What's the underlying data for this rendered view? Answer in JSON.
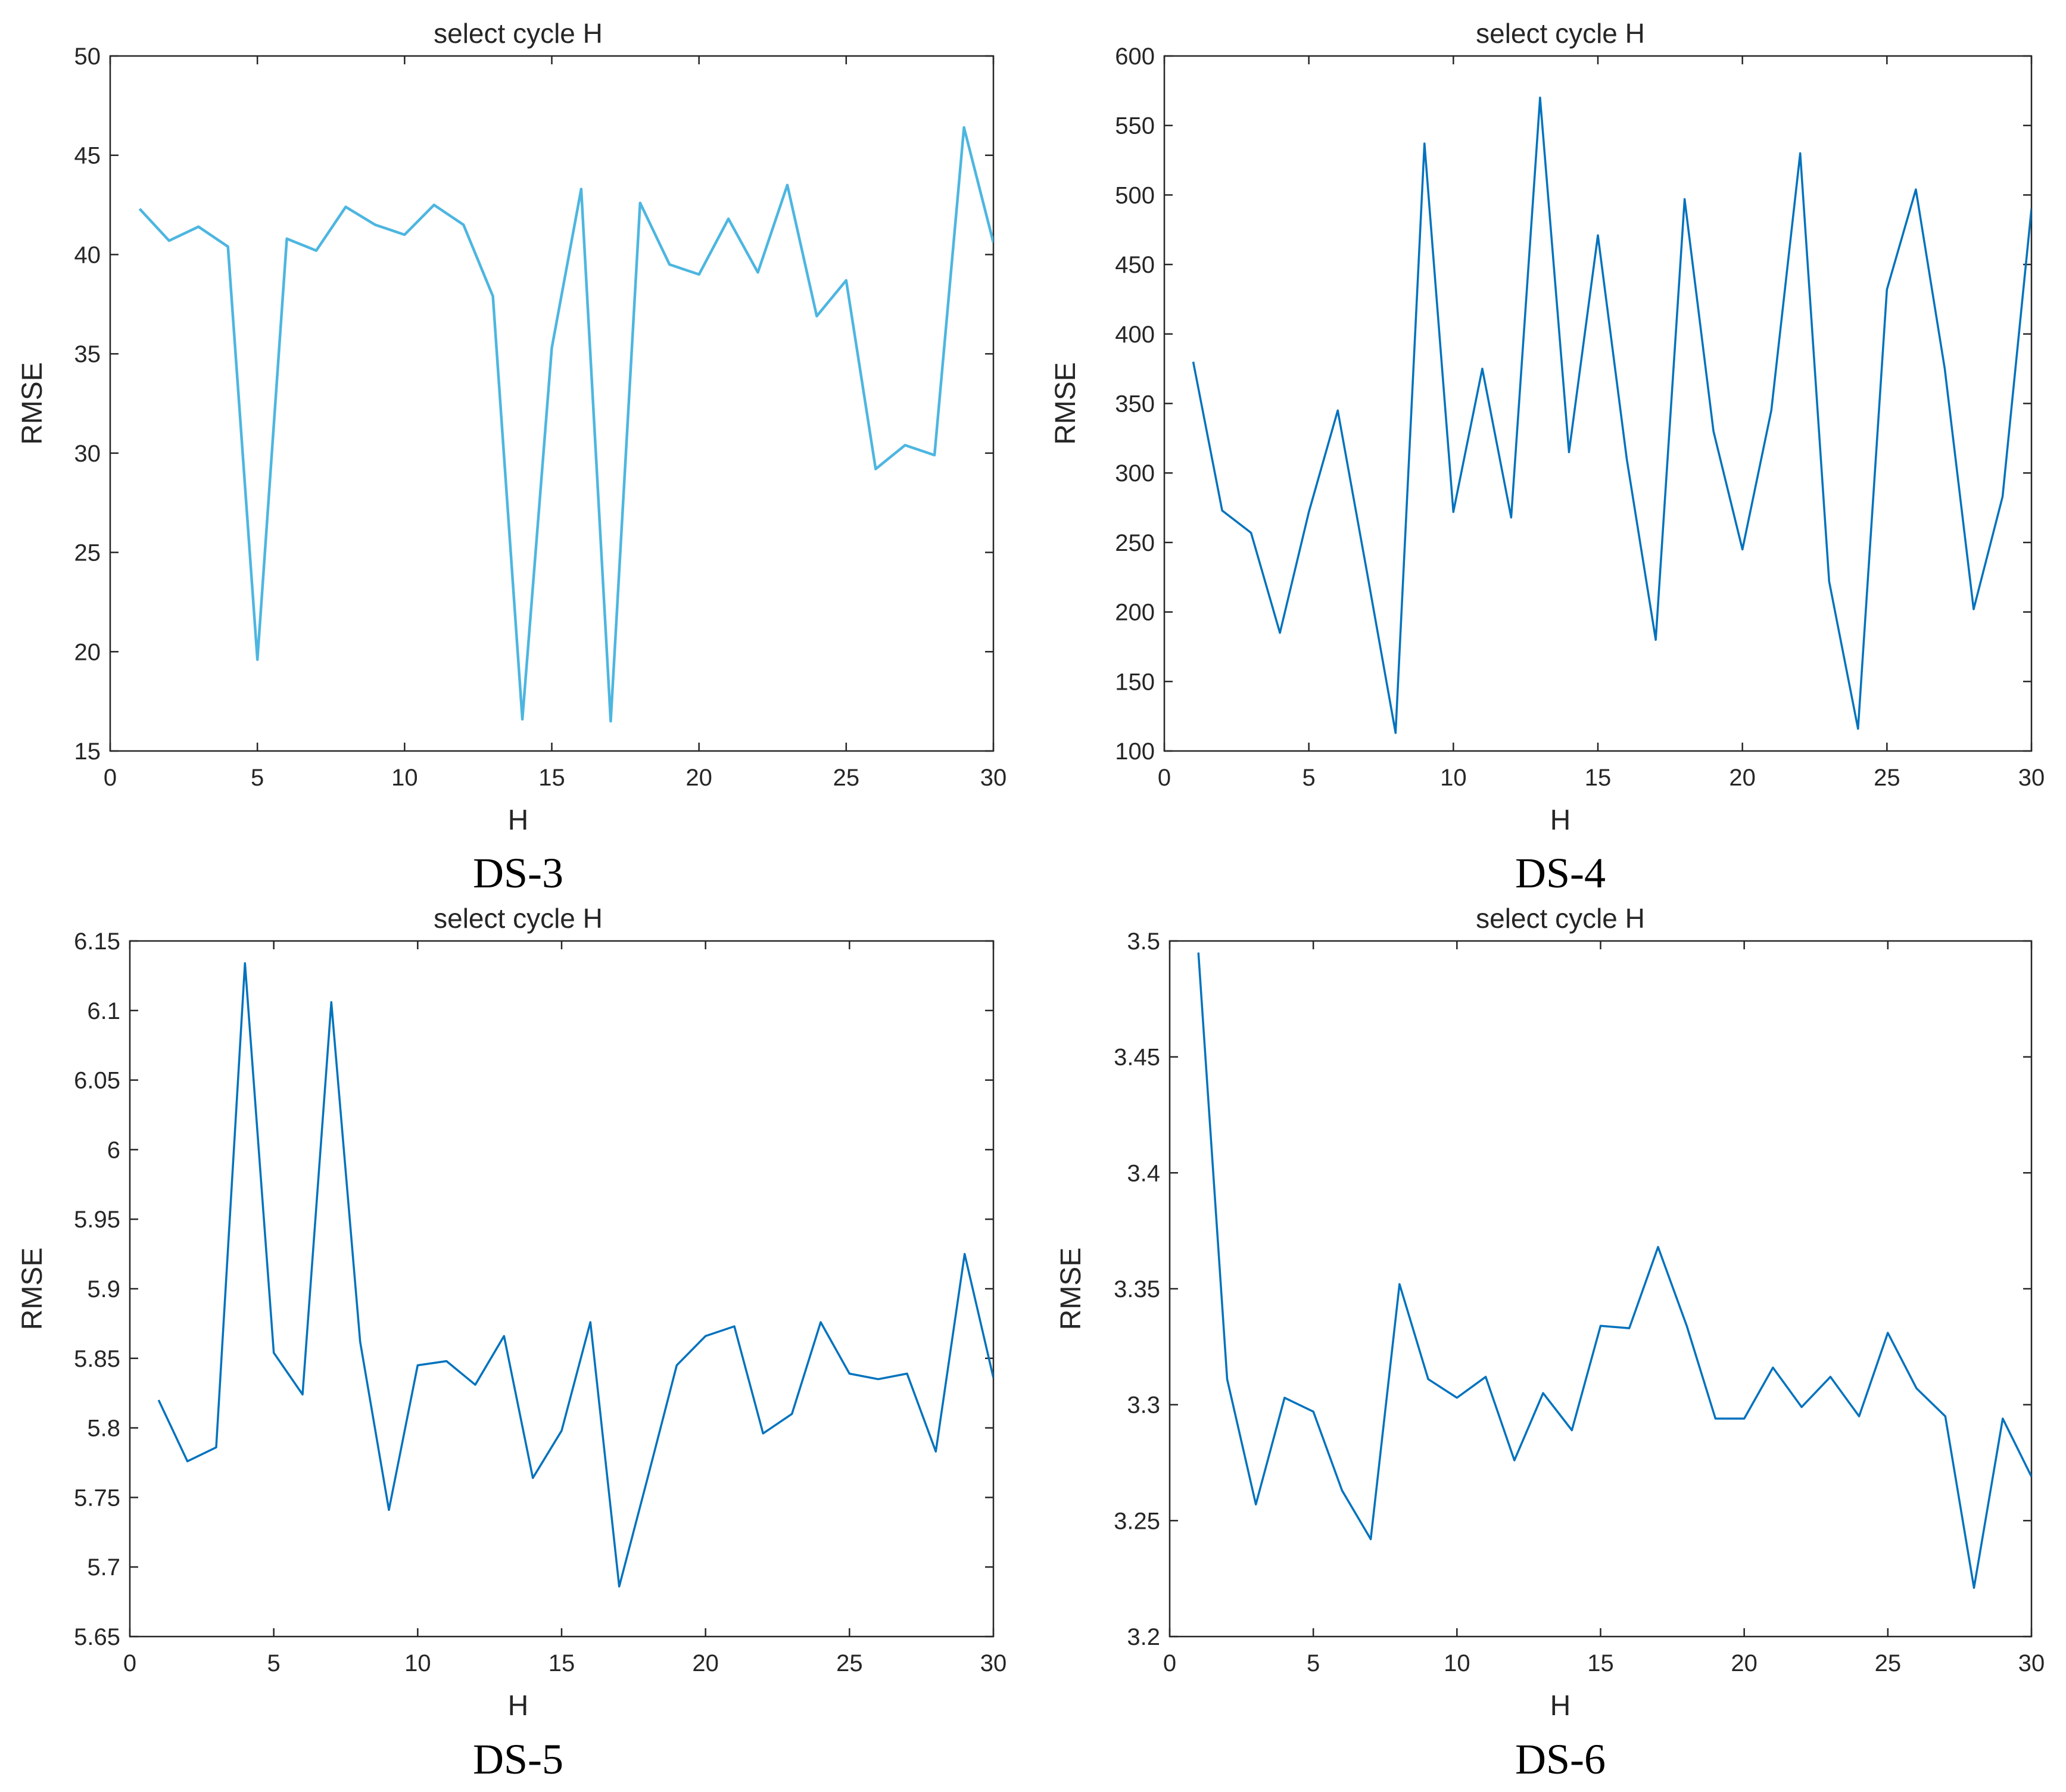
{
  "chart_data": [
    {
      "type": "line",
      "caption": "DS-3",
      "title": "select cycle H",
      "xlabel": "H",
      "ylabel": "RMSE",
      "xlim": [
        0,
        30
      ],
      "ylim": [
        15,
        50
      ],
      "xticks": [
        0,
        5,
        10,
        15,
        20,
        25,
        30
      ],
      "yticks": [
        15,
        20,
        25,
        30,
        35,
        40,
        45,
        50
      ],
      "yticklabels": [
        "15",
        "20",
        "25",
        "30",
        "35",
        "40",
        "45",
        "50"
      ],
      "grid": false,
      "color": "#4db6e0",
      "x": [
        1,
        2,
        3,
        4,
        5,
        6,
        7,
        8,
        9,
        10,
        11,
        12,
        13,
        14,
        15,
        16,
        17,
        18,
        19,
        20,
        21,
        22,
        23,
        24,
        25,
        26,
        27,
        28,
        29,
        30
      ],
      "y": [
        42.3,
        40.7,
        41.4,
        40.4,
        19.6,
        40.8,
        40.2,
        42.4,
        41.5,
        41.0,
        42.5,
        41.5,
        37.9,
        16.6,
        35.3,
        43.3,
        16.5,
        42.6,
        39.5,
        39.0,
        41.8,
        39.1,
        43.5,
        36.9,
        38.7,
        29.2,
        30.4,
        29.9,
        46.4,
        40.6
      ]
    },
    {
      "type": "line",
      "caption": "DS-4",
      "title": "select cycle H",
      "xlabel": "H",
      "ylabel": "RMSE",
      "xlim": [
        0,
        30
      ],
      "ylim": [
        100,
        600
      ],
      "xticks": [
        0,
        5,
        10,
        15,
        20,
        25,
        30
      ],
      "yticks": [
        100,
        150,
        200,
        250,
        300,
        350,
        400,
        450,
        500,
        550,
        600
      ],
      "yticklabels": [
        "100",
        "150",
        "200",
        "250",
        "300",
        "350",
        "400",
        "450",
        "500",
        "550",
        "600"
      ],
      "grid": false,
      "color": "#0072bd",
      "x": [
        1,
        2,
        3,
        4,
        5,
        6,
        7,
        8,
        9,
        10,
        11,
        12,
        13,
        14,
        15,
        16,
        17,
        18,
        19,
        20,
        21,
        22,
        23,
        24,
        25,
        26,
        27,
        28,
        29,
        30
      ],
      "y": [
        380,
        273,
        257,
        185,
        272,
        345,
        230,
        113,
        537,
        272,
        375,
        268,
        570,
        315,
        471,
        310,
        180,
        497,
        330,
        245,
        345,
        530,
        222,
        116,
        432,
        504,
        375,
        202,
        283,
        490
      ]
    },
    {
      "type": "line",
      "caption": "DS-5",
      "title": "select cycle H",
      "xlabel": "H",
      "ylabel": "RMSE",
      "xlim": [
        0,
        30
      ],
      "ylim": [
        5.65,
        6.15
      ],
      "xticks": [
        0,
        5,
        10,
        15,
        20,
        25,
        30
      ],
      "yticks": [
        5.65,
        5.7,
        5.75,
        5.8,
        5.85,
        5.9,
        5.95,
        6.0,
        6.05,
        6.1,
        6.15
      ],
      "yticklabels": [
        "5.65",
        "5.7",
        "5.75",
        "5.8",
        "5.85",
        "5.9",
        "5.95",
        "6",
        "6.05",
        "6.1",
        "6.15"
      ],
      "grid": false,
      "color": "#0072bd",
      "x": [
        1,
        2,
        3,
        4,
        5,
        6,
        7,
        8,
        9,
        10,
        11,
        12,
        13,
        14,
        15,
        16,
        17,
        18,
        19,
        20,
        21,
        22,
        23,
        24,
        25,
        26,
        27,
        28,
        29,
        30
      ],
      "y": [
        5.82,
        5.776,
        5.786,
        6.134,
        5.854,
        5.824,
        6.106,
        5.862,
        5.741,
        5.845,
        5.848,
        5.831,
        5.866,
        5.764,
        5.798,
        5.876,
        5.686,
        5.765,
        5.845,
        5.866,
        5.873,
        5.796,
        5.81,
        5.876,
        5.839,
        5.835,
        5.839,
        5.783,
        5.925,
        5.836
      ]
    },
    {
      "type": "line",
      "caption": "DS-6",
      "title": "select cycle H",
      "xlabel": "H",
      "ylabel": "RMSE",
      "xlim": [
        0,
        30
      ],
      "ylim": [
        3.2,
        3.5
      ],
      "xticks": [
        0,
        5,
        10,
        15,
        20,
        25,
        30
      ],
      "yticks": [
        3.2,
        3.25,
        3.3,
        3.35,
        3.4,
        3.45,
        3.5
      ],
      "yticklabels": [
        "3.2",
        "3.25",
        "3.3",
        "3.35",
        "3.4",
        "3.45",
        "3.5"
      ],
      "grid": false,
      "color": "#0072bd",
      "x": [
        1,
        2,
        3,
        4,
        5,
        6,
        7,
        8,
        9,
        10,
        11,
        12,
        13,
        14,
        15,
        16,
        17,
        18,
        19,
        20,
        21,
        22,
        23,
        24,
        25,
        26,
        27,
        28,
        29,
        30
      ],
      "y": [
        3.495,
        3.311,
        3.257,
        3.303,
        3.297,
        3.263,
        3.242,
        3.352,
        3.311,
        3.303,
        3.312,
        3.276,
        3.305,
        3.289,
        3.334,
        3.333,
        3.368,
        3.334,
        3.294,
        3.294,
        3.316,
        3.299,
        3.312,
        3.295,
        3.331,
        3.307,
        3.295,
        3.221,
        3.294,
        3.269
      ]
    }
  ]
}
